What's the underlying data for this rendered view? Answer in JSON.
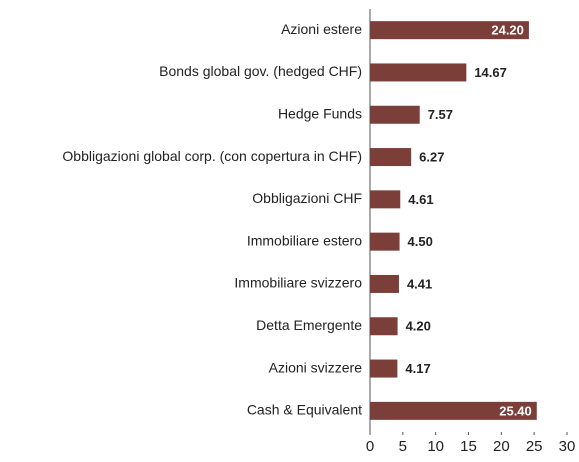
{
  "chart_data": {
    "type": "barh",
    "categories": [
      "Azioni estere",
      "Bonds global gov. (hedged CHF)",
      "Hedge Funds",
      "Obbligazioni global corp. (con copertura in CHF)",
      "Obbligazioni CHF",
      "Immobiliare estero",
      "Immobiliare svizzero",
      "Detta Emergente",
      "Azioni svizzere",
      "Cash & Equivalent"
    ],
    "values": [
      24.2,
      14.67,
      7.57,
      6.27,
      4.61,
      4.5,
      4.41,
      4.2,
      4.17,
      25.4
    ],
    "value_labels": [
      "24.20",
      "14.67",
      "7.57",
      "6.27",
      "4.61",
      "4.50",
      "4.41",
      "4.20",
      "4.17",
      "25.40"
    ],
    "color": "#7b3e38",
    "xlim": [
      0,
      30
    ],
    "xticks": [
      0,
      5,
      10,
      15,
      20,
      25,
      30
    ],
    "grid": false
  }
}
